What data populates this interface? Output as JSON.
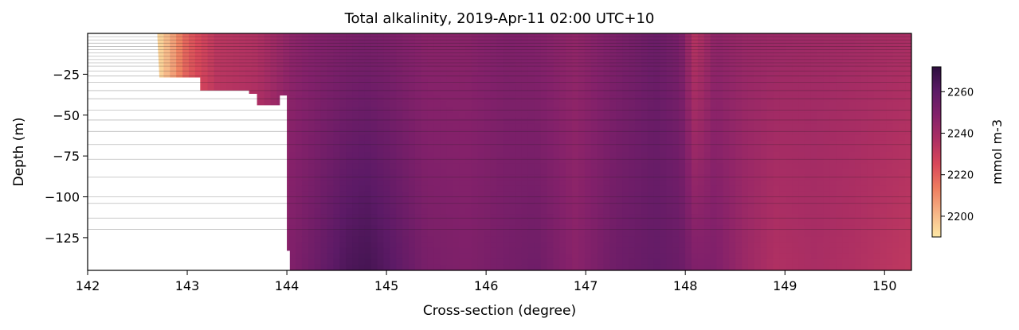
{
  "chart_data": {
    "type": "heatmap",
    "title": "Total alkalinity, 2019-Apr-11 02:00 UTC+10",
    "xlabel": "Cross-section (degree)",
    "ylabel": "Depth (m)",
    "xlim": [
      142,
      150.27
    ],
    "ylim": [
      -145,
      0
    ],
    "xticks": [
      142,
      143,
      144,
      145,
      146,
      147,
      148,
      149,
      150
    ],
    "yticks": [
      -25,
      -50,
      -75,
      -100,
      -125
    ],
    "colorbar": {
      "label": "mmol m-3",
      "range": [
        2190,
        2272
      ],
      "ticks": [
        2200,
        2220,
        2240,
        2260
      ],
      "colormap": [
        "#fde8a6",
        "#f6b486",
        "#ee7d5f",
        "#d8475a",
        "#ad2f63",
        "#84216a",
        "#5c1a66",
        "#2d0f3e"
      ]
    },
    "layer_depths": [
      -2,
      -4,
      -6,
      -8,
      -10,
      -12,
      -14,
      -16,
      -18,
      -20,
      -23,
      -26,
      -30,
      -35,
      -40,
      -47,
      -53,
      -60,
      -68,
      -77,
      -88,
      -100,
      -104,
      -113,
      -120
    ],
    "seafloor": [
      [
        142.0,
        -2
      ],
      [
        142.7,
        -2
      ],
      [
        142.72,
        -27
      ],
      [
        143.13,
        -27
      ],
      [
        143.13,
        -35
      ],
      [
        143.62,
        -35
      ],
      [
        143.62,
        -37
      ],
      [
        143.7,
        -37
      ],
      [
        143.7,
        -44
      ],
      [
        143.93,
        -44
      ],
      [
        143.93,
        -38
      ],
      [
        144.0,
        -38
      ],
      [
        144.0,
        -133
      ],
      [
        144.03,
        -133
      ],
      [
        144.03,
        -145
      ]
    ],
    "profiles": [
      {
        "x": 142.7,
        "surface": 2192,
        "bottom": 2194
      },
      {
        "x": 142.85,
        "surface": 2205,
        "bottom": 2207
      },
      {
        "x": 143.0,
        "surface": 2220,
        "bottom": 2222
      },
      {
        "x": 143.3,
        "surface": 2233,
        "bottom": 2235
      },
      {
        "x": 143.7,
        "surface": 2236,
        "bottom": 2238
      },
      {
        "x": 144.05,
        "surface": 2246,
        "bottom": 2250
      },
      {
        "x": 144.3,
        "surface": 2249,
        "bottom": 2256
      },
      {
        "x": 144.6,
        "surface": 2251,
        "bottom": 2264
      },
      {
        "x": 144.8,
        "surface": 2252,
        "bottom": 2266
      },
      {
        "x": 145.0,
        "surface": 2251,
        "bottom": 2262
      },
      {
        "x": 145.4,
        "surface": 2247,
        "bottom": 2252
      },
      {
        "x": 145.8,
        "surface": 2247,
        "bottom": 2250
      },
      {
        "x": 146.2,
        "surface": 2250,
        "bottom": 2253
      },
      {
        "x": 146.5,
        "surface": 2249,
        "bottom": 2255
      },
      {
        "x": 146.9,
        "surface": 2245,
        "bottom": 2247
      },
      {
        "x": 147.3,
        "surface": 2251,
        "bottom": 2255
      },
      {
        "x": 147.7,
        "surface": 2256,
        "bottom": 2258
      },
      {
        "x": 147.95,
        "surface": 2252,
        "bottom": 2256
      },
      {
        "x": 148.1,
        "surface": 2234,
        "bottom": 2250
      },
      {
        "x": 148.3,
        "surface": 2246,
        "bottom": 2250
      },
      {
        "x": 148.6,
        "surface": 2243,
        "bottom": 2242
      },
      {
        "x": 148.9,
        "surface": 2242,
        "bottom": 2236
      },
      {
        "x": 149.3,
        "surface": 2241,
        "bottom": 2238
      },
      {
        "x": 149.7,
        "surface": 2240,
        "bottom": 2236
      },
      {
        "x": 150.27,
        "surface": 2238,
        "bottom": 2232
      }
    ]
  }
}
